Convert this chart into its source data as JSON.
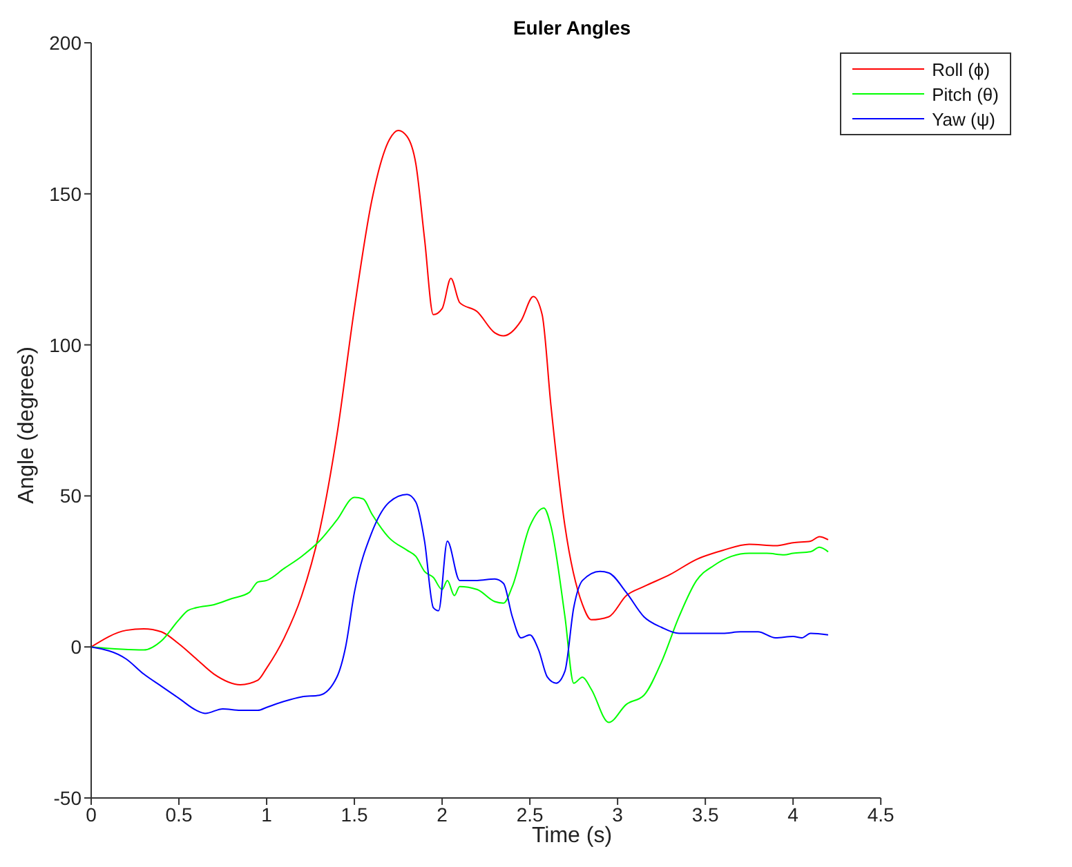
{
  "chart_data": {
    "type": "line",
    "title": "Euler Angles",
    "xlabel": "Time (s)",
    "ylabel": "Angle (degrees)",
    "xlim": [
      0,
      4.5
    ],
    "xticks": [
      0,
      0.5,
      1,
      1.5,
      2,
      2.5,
      3,
      3.5,
      4,
      4.5
    ],
    "ylim": [
      -50,
      200
    ],
    "yticks": [
      -50,
      0,
      50,
      100,
      150,
      200
    ],
    "grid": false,
    "legend": "top right",
    "marker": "none",
    "line_style": "solid",
    "series": [
      {
        "name": "Roll (ϕ)",
        "color": "#ff0000",
        "x": [
          0,
          0.2,
          0.3,
          0.4,
          0.5,
          0.6,
          0.7,
          0.85,
          0.95,
          1.0,
          1.1,
          1.2,
          1.3,
          1.4,
          1.5,
          1.6,
          1.7,
          1.75,
          1.8,
          1.85,
          1.9,
          1.95,
          2.0,
          2.05,
          2.1,
          2.2,
          2.3,
          2.35,
          2.45,
          2.52,
          2.57,
          2.62,
          2.7,
          2.8,
          2.85,
          2.95,
          3.05,
          3.15,
          3.3,
          3.45,
          3.6,
          3.75,
          3.9,
          4.0,
          4.1,
          4.15,
          4.2
        ],
        "values": [
          0,
          5.5,
          6,
          5,
          1,
          -4,
          -9,
          -12.5,
          -11,
          -7,
          3,
          17,
          38,
          70,
          112,
          148,
          168,
          171,
          169,
          160,
          135,
          110,
          112,
          122,
          114,
          111,
          104,
          103,
          108,
          116,
          110,
          80,
          40,
          14,
          9,
          10,
          17,
          20,
          24,
          29,
          32,
          34,
          33.5,
          34.5,
          35,
          36.5,
          35.5
        ]
      },
      {
        "name": "Pitch (θ)",
        "color": "#00ff00",
        "x": [
          0,
          0.3,
          0.4,
          0.5,
          0.55,
          0.6,
          0.7,
          0.8,
          0.9,
          0.95,
          1.0,
          1.1,
          1.2,
          1.3,
          1.4,
          1.5,
          1.55,
          1.6,
          1.7,
          1.8,
          1.85,
          1.9,
          1.95,
          2.0,
          2.03,
          2.07,
          2.1,
          2.2,
          2.3,
          2.35,
          2.4,
          2.5,
          2.58,
          2.62,
          2.7,
          2.75,
          2.8,
          2.85,
          2.95,
          3.05,
          3.15,
          3.25,
          3.35,
          3.45,
          3.55,
          3.65,
          3.75,
          3.85,
          3.95,
          4.0,
          4.1,
          4.15,
          4.2
        ],
        "values": [
          0,
          -1,
          2,
          9,
          12,
          13,
          14,
          16,
          18,
          21.5,
          22,
          26,
          30,
          35,
          42,
          49.5,
          49,
          44,
          36,
          32,
          30,
          25,
          23,
          19,
          22,
          17,
          20,
          19,
          15,
          14.5,
          20,
          40,
          46,
          40,
          10,
          -12,
          -10,
          -14,
          -25,
          -19,
          -16,
          -5,
          10,
          22,
          27,
          30,
          31,
          31,
          30.5,
          31,
          31.5,
          33,
          31.5
        ]
      },
      {
        "name": "Yaw (ψ)",
        "color": "#0000ff",
        "x": [
          0,
          0.2,
          0.3,
          0.4,
          0.5,
          0.6,
          0.65,
          0.75,
          0.85,
          0.95,
          1.0,
          1.1,
          1.2,
          1.3,
          1.4,
          1.45,
          1.5,
          1.6,
          1.7,
          1.8,
          1.85,
          1.9,
          1.95,
          1.98,
          2.03,
          2.1,
          2.2,
          2.3,
          2.35,
          2.4,
          2.45,
          2.5,
          2.55,
          2.6,
          2.65,
          2.7,
          2.75,
          2.8,
          2.9,
          2.95,
          3.05,
          3.15,
          3.25,
          3.35,
          3.5,
          3.6,
          3.7,
          3.8,
          3.9,
          4.0,
          4.05,
          4.1,
          4.2
        ],
        "values": [
          0,
          -4,
          -9,
          -13,
          -17,
          -21,
          -22,
          -20.5,
          -21,
          -21,
          -20,
          -18,
          -16.5,
          -16,
          -10,
          0,
          18,
          38,
          48,
          50.5,
          48,
          35,
          13,
          12,
          35,
          22,
          22,
          22.5,
          21,
          10,
          3,
          4,
          -1,
          -10,
          -12,
          -8,
          13,
          22,
          25,
          24.5,
          18,
          10,
          6.5,
          4.5,
          4.5,
          4.5,
          5,
          5,
          3,
          3.5,
          3,
          4.5,
          4
        ]
      }
    ]
  }
}
